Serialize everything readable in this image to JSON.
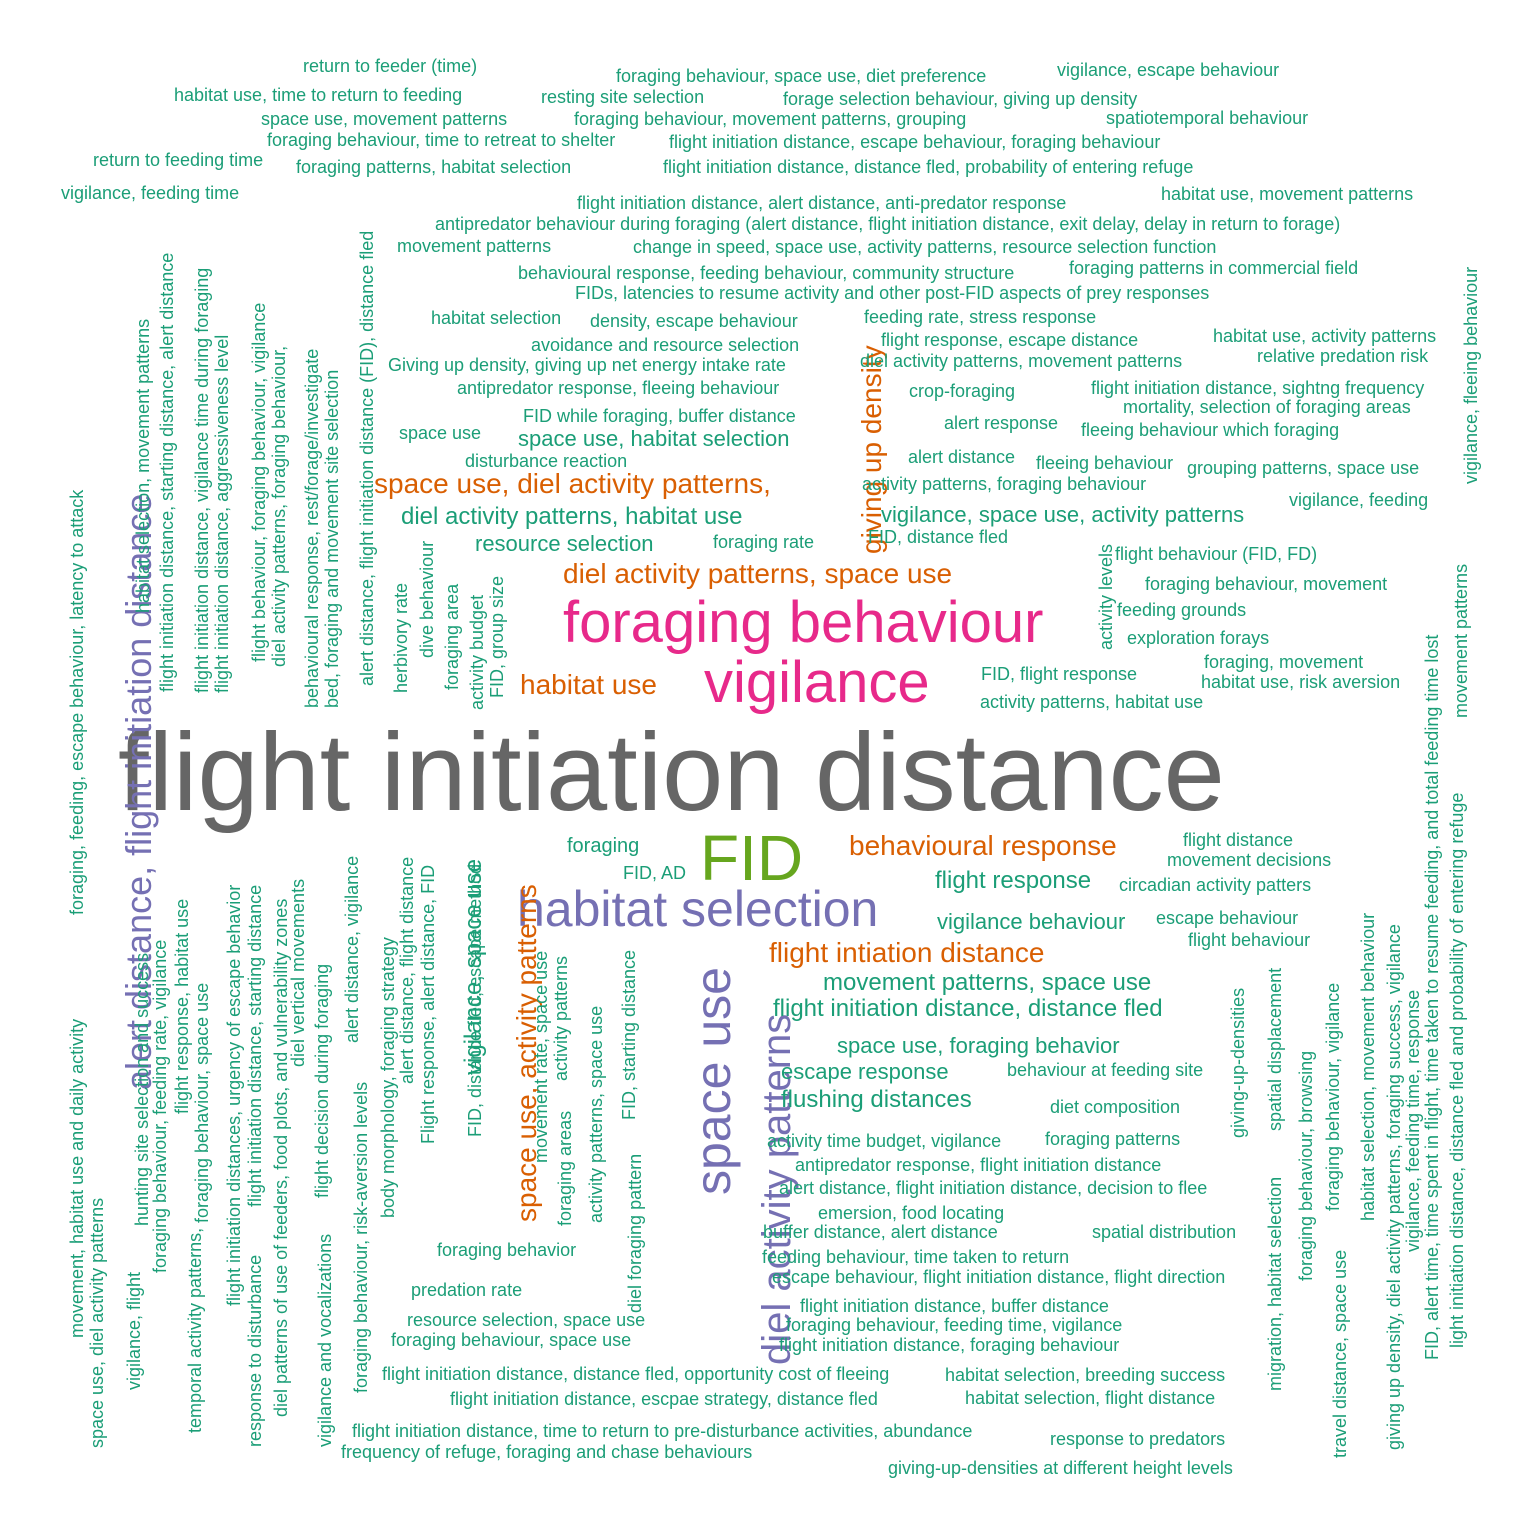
{
  "palette": {
    "grey": "#666666",
    "pink": "#e7298a",
    "green": "#66a61e",
    "purple": "#7570b3",
    "orange": "#d95f02",
    "teal": "#1b9e77"
  },
  "words": [
    "flight initiation distance",
    "foraging behaviour",
    "vigilance",
    "FID",
    "habitat selection",
    "space use",
    "diel activity patterns",
    "alert distance, flight initiation distance",
    "space use, diel activity patterns,",
    "diel activity patterns, space use",
    "habitat use",
    "behavioural response",
    "flight intiation distance",
    "space use, activity patterns",
    "giving up density",
    "diel activity patterns, habitat use",
    "vigilance, space use, activity patterns",
    "resource selection",
    "space use, habitat selection",
    "flight response",
    "vigilance behaviour",
    "movement patterns, space use",
    "flight initiation distance, distance fled",
    "space use, foraging behavior",
    "escape response",
    "flushing distances",
    "vigilance, space use",
    "return to feeder (time)",
    "foraging behaviour, space use, diet preference",
    "vigilance, escape behaviour",
    "habitat use, time to return to feeding",
    "resting site selection",
    "forage selection behaviour, giving up density",
    "space use, movement patterns",
    "foraging behaviour, movement patterns, grouping",
    "spatiotemporal behaviour",
    "foraging behaviour, time to retreat to shelter",
    "flight initiation distance, escape behaviour, foraging behaviour",
    "return to feeding time",
    "foraging patterns, habitat selection",
    "flight initiation distance, distance fled, probability of entering refuge",
    "vigilance, feeding time",
    "flight initiation distance, alert distance, anti-predator response",
    "habitat use, movement patterns",
    "antipredator behaviour during foraging (alert distance, flight initiation distance, exit delay, delay in return to forage)",
    "movement patterns",
    "change in speed, space use, activity patterns, resource selection function",
    "behavioural response, feeding behaviour, community structure",
    "foraging patterns in commercial field",
    "FIDs, latencies to resume activity and other post-FID aspects of prey responses",
    "habitat selection",
    "density, escape behaviour",
    "feeding rate, stress response",
    "flight response, escape distance",
    "habitat use, activity patterns",
    "avoidance and resource selection",
    "diel activity patterns, movement patterns",
    "relative predation risk",
    "Giving up density, giving up net energy intake rate",
    "antipredator response, fleeing behaviour",
    "crop-foraging",
    "flight initiation distance, sightng frequency",
    "FID while foraging, buffer distance",
    "mortality, selection of foraging areas",
    "alert response",
    "space use",
    "fleeing behaviour which foraging",
    "disturbance reaction",
    "alert distance",
    "fleeing behaviour",
    "grouping patterns, space use",
    "activity patterns, foraging behaviour",
    "vigilance, feeding",
    "foraging rate",
    "FID, distance fled",
    "flight behaviour (FID, FD)",
    "foraging behaviour, movement",
    "feeding grounds",
    "exploration forays",
    "foraging, movement",
    "FID, flight response",
    "habitat use, risk aversion",
    "activity patterns, habitat use",
    "foraging",
    "FID, AD",
    "flight distance",
    "movement decisions",
    "circadian activity patters",
    "escape behaviour",
    "flight behaviour",
    "behaviour at feeding site",
    "diet composition",
    "activity time budget, vigilance",
    "foraging patterns",
    "antipredator response, flight initiation distance",
    "alert distance, flight initiation distance, decision to flee",
    "emersion, food locating",
    "buffer distance, alert distance",
    "spatial distribution",
    "foraging behavior",
    "feeding behaviour, time taken to return",
    "escape behaviour, flight initiation distance, flight direction",
    "predation rate",
    "flight initiation distance, buffer distance",
    "resource selection, space use",
    "foraging behaviour, feeding time, vigilance",
    "foraging behaviour, space use",
    "flight initiation distance, foraging behaviour",
    "flight initiation distance, distance fled, opportunity cost of fleeing",
    "habitat selection, breeding success",
    "flight initiation distance, escpae strategy, distance fled",
    "habitat selection, flight distance",
    "flight initiation distance, time to return to pre-disturbance activities, abundance",
    "response to predators",
    "frequency of refuge, foraging and chase behaviours",
    "giving-up-densities at different height levels",
    "foraging, feeding, escape behaviour, latency to attack",
    "habitat selection, movement patterns",
    "flight initiation distance, starting distance, alert distance",
    "flight initiation distance, vigilance time during foraging",
    "flight initiation distance, aggressiveness level",
    "flight behaviour, foraging behaviour, vigilance",
    "diel activity patterns, foraging behaviour,",
    "behavioural response, rest/forage/investigate",
    "bed, foraging and movement site selection",
    "alert distance, flight initiation distance (FID), distance fled",
    "herbivory rate",
    "dive behaviour",
    "foraging area",
    "activity budget",
    "FID, group size",
    "activity levels",
    "vigilance, fleeing behaviour",
    "movement patterns",
    "FID, alert time, time spent in flight, time taken to resume feeding, and total feeding time lost",
    "light initiation distance, distance fled and probability of entering refuge",
    "movement, habitat use and daily activity",
    "space use, diel activity patterns",
    "vigilance, flight",
    "hunting site selection and success",
    "foraging behaviour, feeding rate, vigilance",
    "flight response, habitat use",
    "temporal activity patterns,",
    "foraging behaviour, space use",
    "flight initiation distances, urgency of escape behavior",
    "response to disturbance",
    "flight initiation distance, starting distance",
    "diel patterns of use of feeders, food plots, and vulnerability zones",
    "diel vertical movements",
    "vigilance and vocalizations",
    "flight decision during foraging",
    "alert distance, vigilance",
    "foraging behaviour, risk-aversion levels",
    "body morphology, foraging strategy",
    "alert distance, flight distance",
    "Flight response, alert distance, FID",
    "FID, distance fled, escape method",
    "movement rate, space use",
    "foraging areas",
    "activity patterns",
    "activity patterns, space use",
    "FID, starting distance",
    "diel foraging pattern",
    "giving-up-densities",
    "spatial displacement",
    "migration, habitat selection",
    "foraging behaviour, browsing",
    "foraging behaviour, vigilance",
    "travel distance, space use",
    "habitat selection, movement behaviour",
    "giving up density, diel activity patterns, foraging success, vigilance",
    "vigilance, feeding time, response"
  ]
}
